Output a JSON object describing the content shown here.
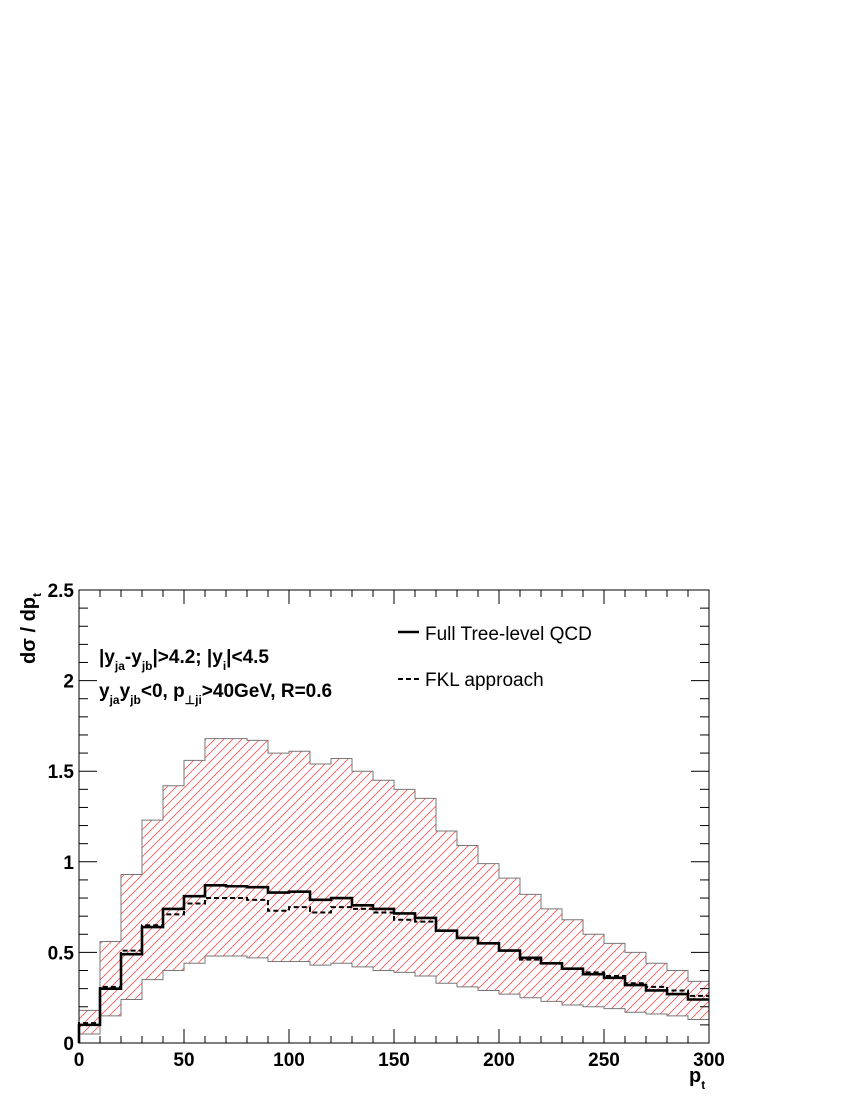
{
  "chart_data": {
    "type": "line",
    "xlabel_main": "p",
    "xlabel_sub": "t",
    "ylabel_main": "dσ / dp",
    "ylabel_sub": "t",
    "xlim": [
      0,
      300
    ],
    "ylim": [
      0,
      2.5
    ],
    "x_ticks": [
      "0",
      "50",
      "100",
      "150",
      "200",
      "250",
      "300"
    ],
    "y_ticks": [
      "0",
      "0.5",
      "1",
      "1.5",
      "2",
      "2.5"
    ],
    "bin_edges": [
      0,
      10,
      20,
      30,
      40,
      50,
      60,
      70,
      80,
      90,
      100,
      110,
      120,
      130,
      140,
      150,
      160,
      170,
      180,
      190,
      200,
      210,
      220,
      230,
      240,
      250,
      260,
      270,
      280,
      290,
      300
    ],
    "series": [
      {
        "name": "Full Tree-level QCD",
        "style": "solid",
        "values": [
          0.1,
          0.3,
          0.49,
          0.64,
          0.74,
          0.81,
          0.87,
          0.865,
          0.86,
          0.83,
          0.835,
          0.79,
          0.8,
          0.76,
          0.74,
          0.715,
          0.69,
          0.62,
          0.58,
          0.55,
          0.51,
          0.47,
          0.44,
          0.41,
          0.38,
          0.36,
          0.32,
          0.29,
          0.27,
          0.24
        ]
      },
      {
        "name": "FKL approach",
        "style": "dashed",
        "values": [
          0.11,
          0.31,
          0.51,
          0.65,
          0.71,
          0.77,
          0.8,
          0.8,
          0.79,
          0.73,
          0.75,
          0.72,
          0.75,
          0.74,
          0.72,
          0.68,
          0.67,
          0.62,
          0.58,
          0.55,
          0.51,
          0.46,
          0.44,
          0.41,
          0.39,
          0.37,
          0.33,
          0.31,
          0.29,
          0.26
        ]
      }
    ],
    "band": {
      "upper": [
        0.18,
        0.56,
        0.93,
        1.23,
        1.42,
        1.56,
        1.68,
        1.68,
        1.67,
        1.6,
        1.61,
        1.54,
        1.57,
        1.5,
        1.45,
        1.4,
        1.35,
        1.17,
        1.09,
        0.99,
        0.91,
        0.82,
        0.74,
        0.68,
        0.6,
        0.55,
        0.5,
        0.44,
        0.4,
        0.34
      ],
      "lower": [
        0.05,
        0.15,
        0.24,
        0.35,
        0.4,
        0.44,
        0.48,
        0.48,
        0.47,
        0.45,
        0.45,
        0.43,
        0.44,
        0.42,
        0.4,
        0.39,
        0.37,
        0.33,
        0.31,
        0.29,
        0.27,
        0.25,
        0.23,
        0.21,
        0.2,
        0.19,
        0.17,
        0.16,
        0.15,
        0.13
      ],
      "color": "#ff0000"
    },
    "legend": {
      "placement": "top-right",
      "entries": [
        "Full Tree-level QCD",
        "FKL approach"
      ]
    },
    "annotation_line1": {
      "p1": "|y",
      "s1": "ja",
      "p2": "-y",
      "s2": "jb",
      "p3": "|>4.2; |y",
      "s3": "i",
      "p4": "|<4.5"
    },
    "annotation_line2": {
      "p1": "y",
      "s1": "ja",
      "p2": "y",
      "s2": "jb",
      "p3": "<0, p",
      "s3": "⊥ji",
      "p4": ">40GeV, R=0.6"
    }
  }
}
